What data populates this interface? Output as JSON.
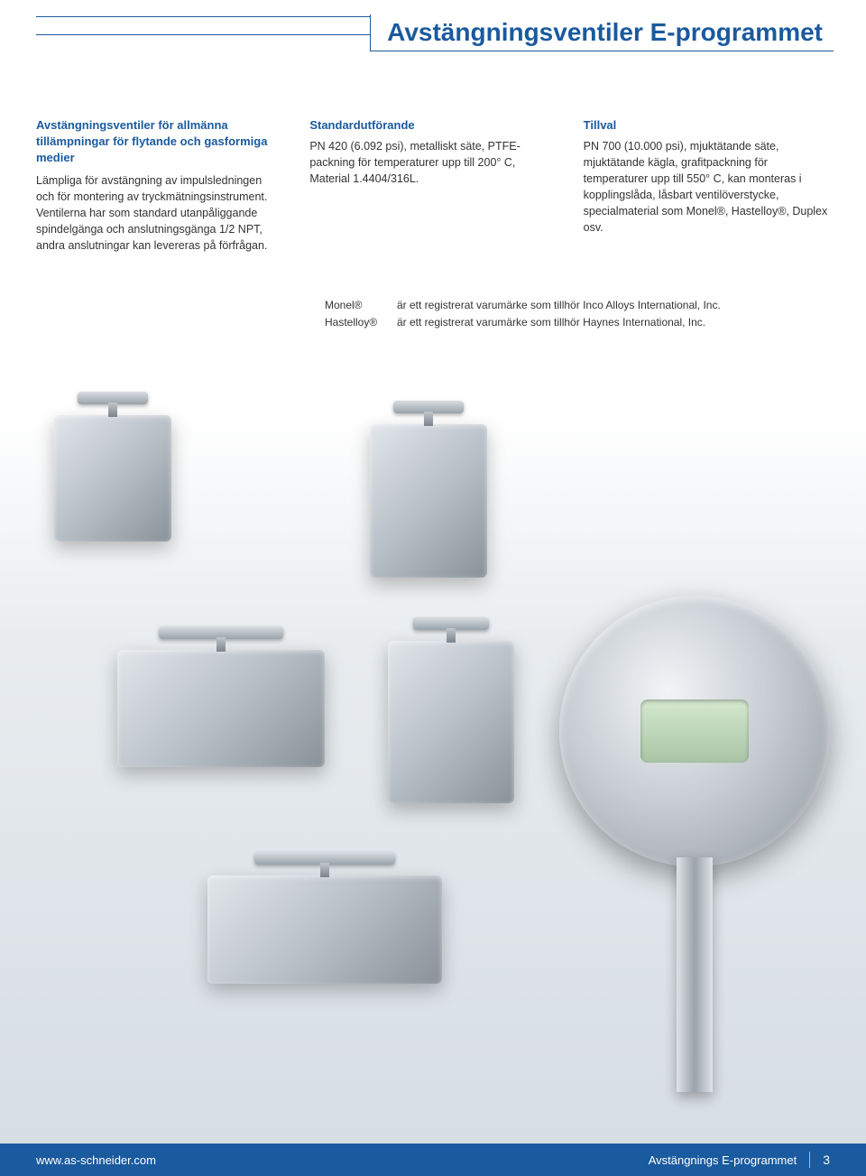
{
  "colors": {
    "brand_blue": "#1a5a9e",
    "text": "#333333",
    "bg_top": "#ffffff",
    "bg_bottom": "#d5dde3"
  },
  "title": "Avstängningsventiler E-programmet",
  "columns": {
    "col1": {
      "lead": "Avstängningsventiler för allmänna tillämpningar för flytande och gasformiga medier",
      "body": "Lämpliga för avstängning av impulsledningen och för montering av tryckmätningsinstrument. Ventilerna har som standard utanpåliggande spindelgänga och anslutningsgänga 1/2 NPT, andra anslutningar kan levereras på förfrågan."
    },
    "col2": {
      "heading": "Standardutförande",
      "body": "PN 420 (6.092 psi), metalliskt säte, PTFE-packning för temperaturer upp till 200° C, Material 1.4404/316L."
    },
    "col3": {
      "heading": "Tillval",
      "body": "PN 700 (10.000 psi), mjuktätande säte, mjuktätande kägla, grafitpackning för temperaturer upp till 550° C, kan monteras i kopplingslåda, låsbart ventilöverstycke, specialmaterial som Monel®, Hastelloy®, Duplex osv."
    }
  },
  "trademarks": [
    {
      "label": "Monel®",
      "text": "är ett registrerat varumärke som tillhör Inco Alloys International, Inc."
    },
    {
      "label": "Hastelloy®",
      "text": "är ett registrerat varumärke som tillhör Haynes International, Inc."
    }
  ],
  "footer": {
    "url": "www.as-schneider.com",
    "section": "Avstängnings E-programmet",
    "page": "3"
  }
}
